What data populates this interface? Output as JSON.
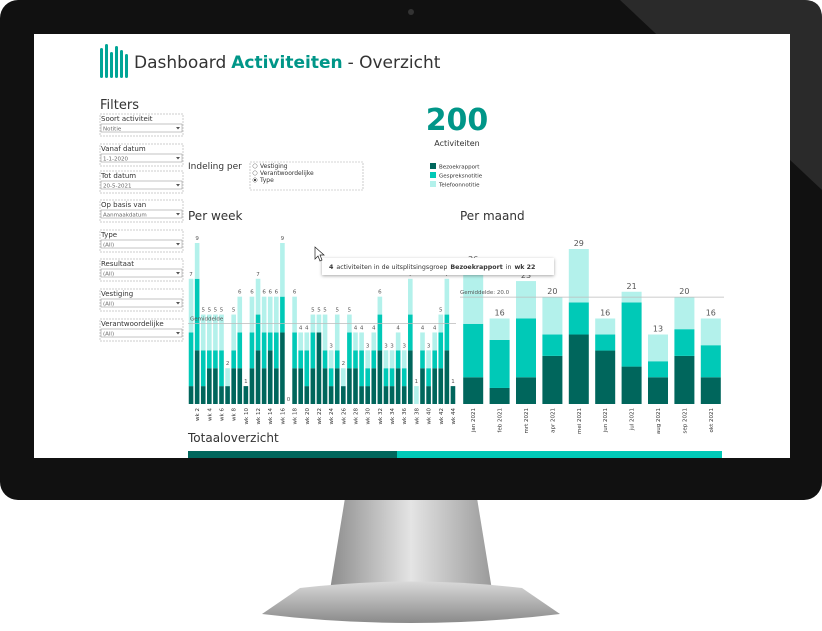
{
  "header": {
    "title_start": "Dashboard",
    "title_bold": "Activiteiten",
    "title_end": "- Overzicht"
  },
  "filters": {
    "title": "Filters",
    "items": [
      {
        "label": "Soort activiteit",
        "value": "Notitie"
      },
      {
        "label": "Vanaf datum",
        "value": "1-1-2020"
      },
      {
        "label": "Tot datum",
        "value": "20-5-2021"
      },
      {
        "label": "Op basis van",
        "value": "Aanmaakdatum"
      },
      {
        "label": "Type",
        "value": "(All)"
      },
      {
        "label": "Resultaat",
        "value": "(All)"
      },
      {
        "label": "Vestiging",
        "value": "(All)"
      },
      {
        "label": "Verantwoordelijke",
        "value": "(All)"
      }
    ]
  },
  "kpi": {
    "value": "200",
    "label": "Activiteiten"
  },
  "legend": {
    "items": [
      {
        "name": "Bezoekrapport",
        "color": "#00665c"
      },
      {
        "name": "Gespreksnotitie",
        "color": "#00c9b7"
      },
      {
        "name": "Telefoonnotitie",
        "color": "#b3f1eb"
      }
    ]
  },
  "indeling": {
    "label": "Indeling per",
    "options": [
      "Vestiging",
      "Verantwoordelijke",
      "Type"
    ],
    "selected": 2
  },
  "weekly_chart": {
    "type": "bar",
    "title": "Per week",
    "categories": [
      null,
      "wk 2",
      null,
      "wk 4",
      null,
      "wk 6",
      null,
      "wk 8",
      null,
      "wk 10",
      null,
      "wk 12",
      null,
      "wk 14",
      null,
      "wk 16",
      null,
      "wk 18",
      null,
      "wk 20",
      null,
      "wk 22",
      null,
      "wk 24",
      null,
      "wk 26",
      null,
      "wk 28",
      null,
      "wk 30",
      null,
      "wk 32",
      null,
      "wk 34",
      null,
      "wk 36",
      null,
      "wk 38",
      null,
      "wk 40",
      null,
      "wk 42",
      null,
      "wk 44"
    ],
    "series": [
      {
        "values": [
          1,
          3,
          1,
          2,
          2,
          1,
          1,
          2,
          2,
          1,
          2,
          3,
          2,
          3,
          2,
          4,
          0,
          2,
          2,
          1,
          2,
          4,
          2,
          1,
          2,
          1,
          2,
          2,
          1,
          1,
          2,
          3,
          1,
          1,
          2,
          1,
          3,
          0,
          2,
          1,
          2,
          2,
          3,
          1
        ]
      },
      {
        "values": [
          3,
          4,
          2,
          1,
          1,
          2,
          0,
          1,
          2,
          0,
          2,
          2,
          2,
          1,
          2,
          2,
          0,
          2,
          1,
          2,
          2,
          0,
          1,
          1,
          1,
          0,
          2,
          1,
          2,
          1,
          1,
          2,
          1,
          1,
          1,
          1,
          2,
          0,
          1,
          1,
          1,
          2,
          2,
          0
        ]
      },
      {
        "values": [
          3,
          2,
          2,
          2,
          2,
          2,
          1,
          2,
          2,
          0,
          2,
          2,
          2,
          2,
          2,
          3,
          0,
          2,
          1,
          1,
          1,
          1,
          2,
          1,
          2,
          1,
          1,
          1,
          1,
          1,
          1,
          1,
          1,
          1,
          1,
          1,
          2,
          1,
          1,
          1,
          1,
          1,
          2,
          0
        ]
      }
    ],
    "totals": [
      7,
      9,
      5,
      5,
      5,
      5,
      2,
      5,
      6,
      1,
      6,
      7,
      6,
      6,
      6,
      9,
      0,
      6,
      4,
      4,
      5,
      5,
      5,
      3,
      5,
      2,
      5,
      4,
      4,
      3,
      4,
      6,
      3,
      3,
      4,
      3,
      7,
      1,
      4,
      3,
      4,
      5,
      7,
      1
    ],
    "average": 4.5,
    "average_label": "Gemiddelde"
  },
  "monthly_chart": {
    "type": "bar",
    "title": "Per maand",
    "categories": [
      "jan 2021",
      "feb 2021",
      "mrt 2021",
      "apr 2021",
      "mei 2021",
      "jun 2021",
      "jul 2021",
      "aug 2021",
      "sep 2021",
      "okt 2021"
    ],
    "series": [
      {
        "values": [
          5,
          3,
          5,
          9,
          13,
          10,
          7,
          5,
          9,
          5
        ]
      },
      {
        "values": [
          10,
          9,
          11,
          4,
          6,
          3,
          12,
          3,
          5,
          6
        ]
      },
      {
        "values": [
          11,
          4,
          7,
          7,
          10,
          3,
          2,
          5,
          6,
          5
        ]
      }
    ],
    "totals": [
      26,
      16,
      23,
      20,
      29,
      16,
      21,
      13,
      20,
      16
    ],
    "average": 20.0,
    "average_label": "Gemiddelde: 20.0"
  },
  "tooltip": {
    "count": "4",
    "text": "activiteiten in de uitsplitsingsgroep",
    "group": "Bezoekrapport",
    "joiner": "in",
    "week": "wk 22"
  },
  "overview": {
    "title": "Totaaloverzicht"
  }
}
